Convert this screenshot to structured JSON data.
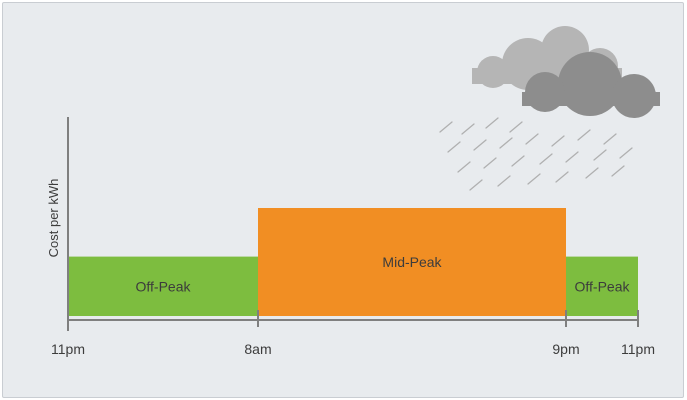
{
  "chart_data": {
    "type": "bar",
    "xlabel": "",
    "ylabel": "Cost per kWh",
    "ticks": [
      "11pm",
      "8am",
      "9pm",
      "11pm"
    ],
    "tick_hours": [
      0,
      9,
      22,
      24
    ],
    "periods": [
      {
        "label": "Off-Peak",
        "start": 0,
        "end": 9,
        "relative_cost": 0.55
      },
      {
        "label": "Mid-Peak",
        "start": 9,
        "end": 22,
        "relative_cost": 1.0
      },
      {
        "label": "Off-Peak",
        "start": 22,
        "end": 24,
        "relative_cost": 0.55
      }
    ],
    "colors": {
      "off_peak": "#7dbd3f",
      "mid_peak": "#f18e23",
      "axis": "#7f7f7f",
      "cloud_light": "#b5b5b5",
      "cloud_dark": "#8d8d8d",
      "rain": "#b0b0b0"
    },
    "decoration": {
      "icon": "rain-cloud-icon"
    }
  }
}
